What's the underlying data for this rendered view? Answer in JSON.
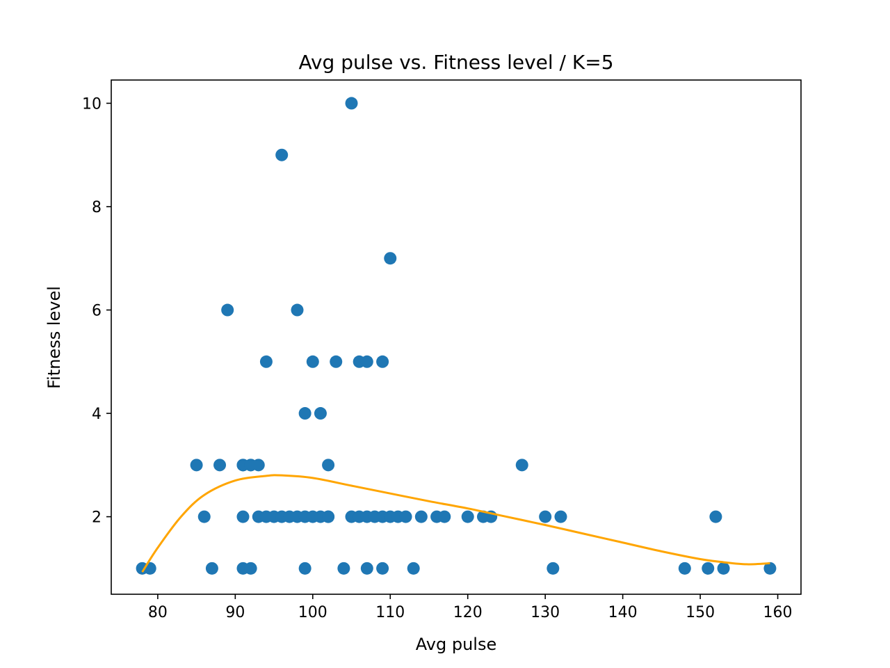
{
  "chart_data": {
    "type": "scatter",
    "title": "Avg pulse vs. Fitness level / K=5",
    "xlabel": "Avg pulse",
    "ylabel": "Fitness level",
    "xlim": [
      74,
      163
    ],
    "ylim": [
      0.5,
      10.45
    ],
    "xticks": [
      80,
      90,
      100,
      110,
      120,
      130,
      140,
      150,
      160
    ],
    "yticks": [
      2,
      4,
      6,
      8,
      10
    ],
    "grid": false,
    "colors": {
      "points": "#1f77b4",
      "fit": "#ffa500",
      "axes": "#000000"
    },
    "series": [
      {
        "kind": "points",
        "x": [
          78,
          79,
          85,
          86,
          87,
          88,
          89,
          91,
          91,
          91,
          91,
          92,
          92,
          92,
          93,
          93,
          94,
          94,
          95,
          96,
          96,
          97,
          98,
          98,
          99,
          99,
          99,
          100,
          100,
          101,
          101,
          102,
          102,
          102,
          103,
          104,
          105,
          105,
          106,
          106,
          107,
          107,
          107,
          108,
          109,
          109,
          109,
          110,
          110,
          111,
          112,
          113,
          114,
          116,
          117,
          120,
          122,
          123,
          127,
          130,
          131,
          132,
          148,
          151,
          152,
          153,
          159
        ],
        "y": [
          1,
          1,
          3,
          2,
          1,
          3,
          6,
          3,
          2,
          1,
          3,
          3,
          1,
          3,
          2,
          3,
          5,
          2,
          2,
          9,
          2,
          2,
          2,
          6,
          4,
          1,
          2,
          2,
          5,
          2,
          4,
          2,
          3,
          2,
          5,
          1,
          10,
          2,
          5,
          2,
          5,
          2,
          1,
          2,
          5,
          1,
          2,
          2,
          7,
          2,
          2,
          1,
          2,
          2,
          2,
          2,
          2,
          2,
          3,
          2,
          1,
          2,
          1,
          1,
          2,
          1,
          1
        ]
      },
      {
        "kind": "fit",
        "degree": 5,
        "x": [
          78,
          80,
          83,
          86,
          90,
          94,
          96,
          100,
          105,
          110,
          115,
          120,
          125,
          130,
          135,
          140,
          145,
          150,
          153,
          156,
          159
        ],
        "y": [
          0.93,
          1.4,
          2.0,
          2.42,
          2.7,
          2.79,
          2.8,
          2.75,
          2.6,
          2.45,
          2.3,
          2.16,
          2.0,
          1.84,
          1.67,
          1.5,
          1.33,
          1.18,
          1.12,
          1.08,
          1.1
        ]
      }
    ]
  }
}
